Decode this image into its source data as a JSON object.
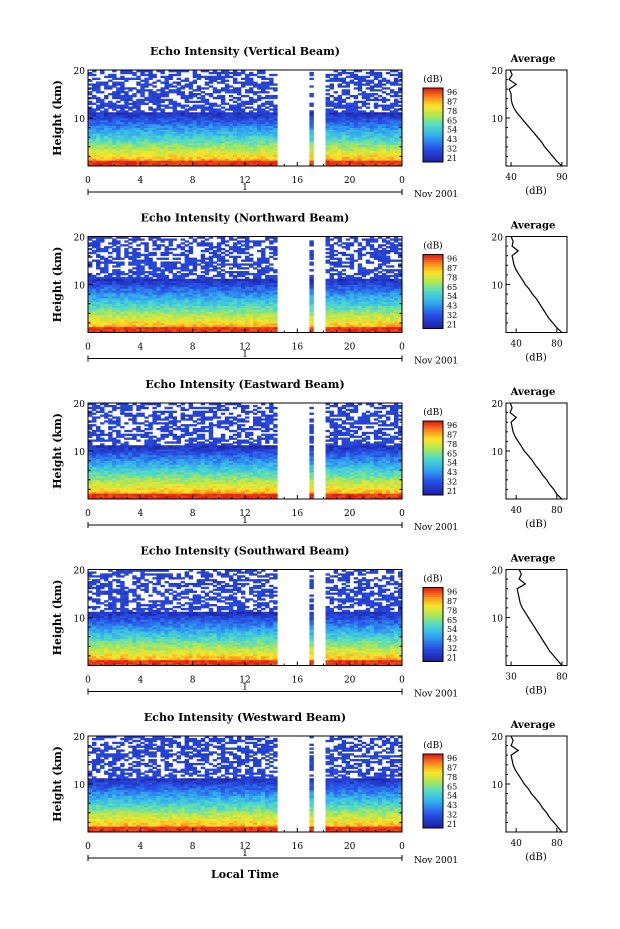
{
  "figure": {
    "colorbar_unit": "(dB)",
    "colorbar_ticks": [
      "96",
      "87",
      "78",
      "65",
      "54",
      "43",
      "32",
      "21"
    ],
    "xlabel": "Local Time",
    "date_label": "Nov 2001",
    "day_label": "1",
    "x_ticks": [
      "0",
      "4",
      "8",
      "12",
      "16",
      "20",
      "0"
    ],
    "y_ticks": [
      "20",
      "10"
    ],
    "ylabel": "Height (km)",
    "avg_title": "Average",
    "avg_xlabel": "(dB)"
  },
  "chart_data": [
    {
      "type": "heatmap",
      "title": "Echo Intensity (Vertical Beam)",
      "xlabel": "",
      "ylabel": "Height (km)",
      "x_range_hours": [
        0,
        24
      ],
      "y_range_km": [
        0,
        20
      ],
      "data_gaps_hours": [
        [
          14.5,
          16.9
        ],
        [
          17.2,
          18.0
        ]
      ],
      "color_scale": {
        "min": 21,
        "max": 96,
        "unit": "dB",
        "ticks": [
          96,
          87,
          78,
          65,
          54,
          43,
          32,
          21
        ]
      },
      "profile": {
        "title": "Average",
        "xlabel": "(dB)",
        "x_ticks": [
          40,
          90
        ],
        "x_range": [
          35,
          95
        ],
        "height_km": [
          0,
          1,
          2,
          3,
          4,
          5,
          6,
          7,
          8,
          9,
          10,
          11,
          12,
          13,
          14,
          15,
          16,
          17,
          18,
          19,
          20
        ],
        "power_db": [
          90,
          85,
          81,
          77,
          73,
          70,
          66,
          62,
          58,
          54,
          50,
          46,
          43,
          41,
          40,
          40,
          38,
          45,
          38,
          41,
          39
        ]
      }
    },
    {
      "type": "heatmap",
      "title": "Echo Intensity (Northward Beam)",
      "xlabel": "",
      "ylabel": "Height (km)",
      "x_range_hours": [
        0,
        24
      ],
      "y_range_km": [
        0,
        20
      ],
      "data_gaps_hours": [
        [
          14.5,
          16.9
        ],
        [
          17.2,
          18.0
        ]
      ],
      "color_scale": {
        "min": 21,
        "max": 96,
        "unit": "dB",
        "ticks": [
          96,
          87,
          78,
          65,
          54,
          43,
          32,
          21
        ]
      },
      "profile": {
        "title": "Average",
        "xlabel": "(dB)",
        "x_ticks": [
          40,
          80
        ],
        "x_range": [
          30,
          90
        ],
        "height_km": [
          0,
          1,
          2,
          3,
          4,
          5,
          6,
          7,
          8,
          9,
          10,
          11,
          12,
          13,
          14,
          15,
          16,
          17,
          18,
          19,
          20
        ],
        "power_db": [
          85,
          80,
          76,
          72,
          69,
          66,
          63,
          60,
          56,
          53,
          49,
          46,
          43,
          40,
          38,
          37,
          36,
          42,
          36,
          37,
          35
        ]
      }
    },
    {
      "type": "heatmap",
      "title": "Echo Intensity (Eastward Beam)",
      "xlabel": "",
      "ylabel": "Height (km)",
      "x_range_hours": [
        0,
        24
      ],
      "y_range_km": [
        0,
        20
      ],
      "data_gaps_hours": [
        [
          14.5,
          16.9
        ],
        [
          17.2,
          18.0
        ]
      ],
      "color_scale": {
        "min": 21,
        "max": 96,
        "unit": "dB",
        "ticks": [
          96,
          87,
          78,
          65,
          54,
          43,
          32,
          21
        ]
      },
      "profile": {
        "title": "Average",
        "xlabel": "(dB)",
        "x_ticks": [
          40,
          80
        ],
        "x_range": [
          30,
          90
        ],
        "height_km": [
          0,
          1,
          2,
          3,
          4,
          5,
          6,
          7,
          8,
          9,
          10,
          11,
          12,
          13,
          14,
          15,
          16,
          17,
          18,
          19,
          20
        ],
        "power_db": [
          85,
          80,
          77,
          73,
          70,
          66,
          63,
          59,
          56,
          52,
          48,
          45,
          42,
          39,
          37,
          36,
          35,
          40,
          34,
          36,
          34
        ]
      }
    },
    {
      "type": "heatmap",
      "title": "Echo Intensity (Southward Beam)",
      "xlabel": "",
      "ylabel": "Height (km)",
      "x_range_hours": [
        0,
        24
      ],
      "y_range_km": [
        0,
        20
      ],
      "data_gaps_hours": [
        [
          14.5,
          16.9
        ],
        [
          17.2,
          18.0
        ]
      ],
      "color_scale": {
        "min": 21,
        "max": 96,
        "unit": "dB",
        "ticks": [
          96,
          87,
          78,
          65,
          54,
          43,
          32,
          21
        ]
      },
      "profile": {
        "title": "Average",
        "xlabel": "(dB)",
        "x_ticks": [
          30,
          80
        ],
        "x_range": [
          25,
          85
        ],
        "height_km": [
          0,
          1,
          2,
          3,
          4,
          5,
          6,
          7,
          8,
          9,
          10,
          11,
          12,
          13,
          14,
          15,
          16,
          17,
          18,
          19,
          20
        ],
        "power_db": [
          80,
          76,
          72,
          68,
          65,
          62,
          59,
          56,
          53,
          50,
          47,
          44,
          41,
          39,
          38,
          37,
          36,
          44,
          38,
          40,
          38
        ]
      }
    },
    {
      "type": "heatmap",
      "title": "Echo Intensity (Westward Beam)",
      "xlabel": "Local Time",
      "ylabel": "Height (km)",
      "x_range_hours": [
        0,
        24
      ],
      "y_range_km": [
        0,
        20
      ],
      "data_gaps_hours": [
        [
          14.5,
          16.9
        ],
        [
          17.2,
          18.0
        ]
      ],
      "color_scale": {
        "min": 21,
        "max": 96,
        "unit": "dB",
        "ticks": [
          96,
          87,
          78,
          65,
          54,
          43,
          32,
          21
        ]
      },
      "profile": {
        "title": "Average",
        "xlabel": "(dB)",
        "x_ticks": [
          40,
          80
        ],
        "x_range": [
          30,
          90
        ],
        "height_km": [
          0,
          1,
          2,
          3,
          4,
          5,
          6,
          7,
          8,
          9,
          10,
          11,
          12,
          13,
          14,
          15,
          16,
          17,
          18,
          19,
          20
        ],
        "power_db": [
          85,
          81,
          77,
          73,
          70,
          66,
          63,
          59,
          55,
          52,
          48,
          45,
          42,
          39,
          37,
          36,
          35,
          42,
          35,
          37,
          35
        ]
      }
    }
  ]
}
